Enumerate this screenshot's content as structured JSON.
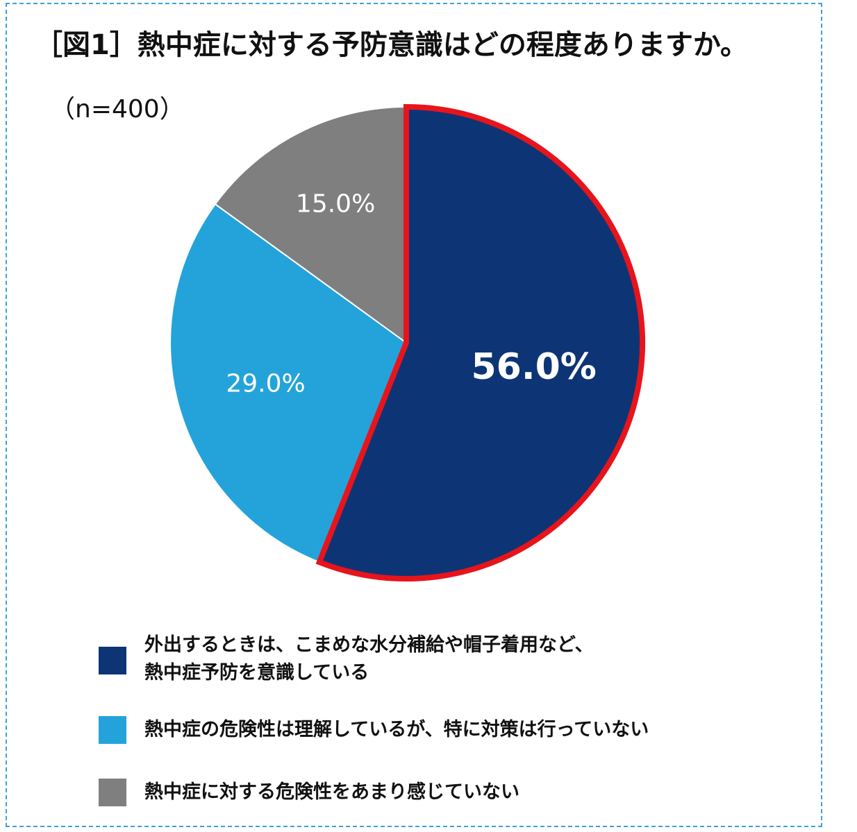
{
  "title": "［図1］熱中症に対する予防意識はどの程度ありますか。",
  "sample_size": "（n=400）",
  "chart_data": {
    "type": "pie",
    "title": "［図1］熱中症に対する予防意識はどの程度ありますか。",
    "subtitle": "（n=400）",
    "slices": [
      {
        "label": "外出するときは、こまめな水分補給や帽子着用など、熱中症予防を意識している",
        "value": 56.0,
        "display": "56.0%",
        "color": "#0d3575",
        "highlighted": true,
        "highlight_color": "#e8141b"
      },
      {
        "label": "熱中症の危険性は理解しているが、特に対策は行っていない",
        "value": 29.0,
        "display": "29.0%",
        "color": "#24a3da",
        "highlighted": false
      },
      {
        "label": "熱中症に対する危険性をあまり感じていない",
        "value": 15.0,
        "display": "15.0%",
        "color": "#7f7f7f",
        "highlighted": false
      }
    ],
    "legend_position": "bottom"
  },
  "legend": [
    {
      "line1": "外出するときは、こまめな水分補給や帽子着用など、",
      "line2": "熱中症予防を意識している",
      "color": "#0d3575"
    },
    {
      "line1": "熱中症の危険性は理解しているが、特に対策は行っていない",
      "line2": "",
      "color": "#24a3da"
    },
    {
      "line1": "熱中症に対する危険性をあまり感じていない",
      "line2": "",
      "color": "#7f7f7f"
    }
  ]
}
